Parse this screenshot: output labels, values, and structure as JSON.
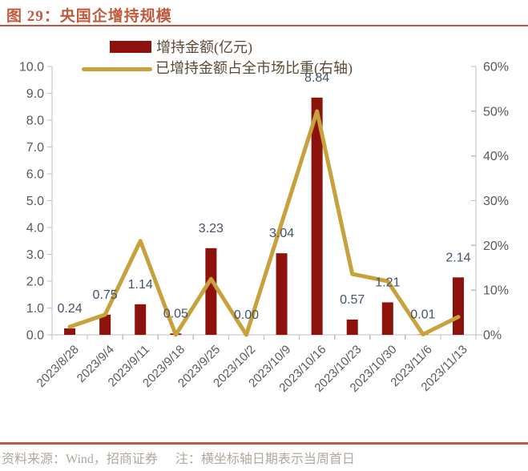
{
  "figure": {
    "title": "图 29：央国企增持规模",
    "source_note": "资料来源：Wind，招商证券",
    "note": "注：横坐标轴日期表示当周首日"
  },
  "legend": [
    {
      "label": "增持金额(亿元)",
      "type": "bar",
      "color": "#8C120B"
    },
    {
      "label": "已增持金额占全市场比重(右轴)",
      "type": "line",
      "color": "#C7A13C"
    }
  ],
  "colors": {
    "accent": "#C05A3C",
    "bar": "#8C120B",
    "line": "#C7A13C",
    "axis": "#BFBFBF",
    "tick_label": "#595959",
    "bar_label": "#44546A",
    "legend_text": "#5C4A38",
    "footer_text": "#AFA89E"
  },
  "chart_data": {
    "type": "bar",
    "title": "央国企增持规模",
    "categories": [
      "2023/8/28",
      "2023/9/4",
      "2023/9/11",
      "2023/9/18",
      "2023/9/25",
      "2023/10/2",
      "2023/10/9",
      "2023/10/16",
      "2023/10/23",
      "2023/10/30",
      "2023/11/6",
      "2023/11/13"
    ],
    "series": [
      {
        "name": "增持金额(亿元)",
        "type": "bar",
        "axis": "left",
        "color": "#8C120B",
        "values": [
          0.24,
          0.75,
          1.14,
          0.05,
          3.23,
          0.0,
          3.04,
          8.84,
          0.57,
          1.21,
          0.01,
          2.14
        ],
        "labels": [
          "0.24",
          "0.75",
          "1.14",
          "0.05",
          "3.23",
          "0.00",
          "3.04",
          "8.84",
          "0.57",
          "1.21",
          "0.01",
          "2.14"
        ]
      },
      {
        "name": "已增持金额占全市场比重(右轴)",
        "type": "line",
        "axis": "right",
        "color": "#C7A13C",
        "values_pct": [
          1.8,
          4.5,
          21,
          0,
          12.5,
          0,
          25,
          50,
          13.6,
          12,
          0.1,
          4
        ]
      }
    ],
    "left_axis": {
      "min": 0,
      "max": 10,
      "step": 1,
      "tick_labels": [
        "0.0",
        "1.0",
        "2.0",
        "3.0",
        "4.0",
        "5.0",
        "6.0",
        "7.0",
        "8.0",
        "9.0",
        "10.0"
      ]
    },
    "right_axis": {
      "min": 0,
      "max": 60,
      "step": 10,
      "tick_labels": [
        "0%",
        "10%",
        "20%",
        "30%",
        "40%",
        "50%",
        "60%"
      ]
    },
    "grid": false,
    "legend_position": "top",
    "x_label_rotation_deg": -45,
    "note": "横坐标轴日期表示当周首日"
  }
}
